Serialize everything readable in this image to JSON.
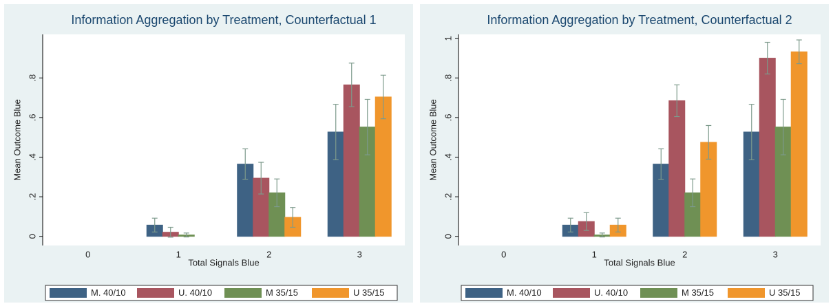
{
  "chart_data": [
    {
      "type": "bar",
      "title": "Information Aggregation by Treatment, Counterfactual 1",
      "x_label": "Total Signals Blue",
      "y_label": "Mean Outcome Blue",
      "categories": [
        "0",
        "1",
        "2",
        "3"
      ],
      "series": [
        {
          "name": "M. 40/10",
          "color": "#3e6284",
          "values": [
            0,
            0.057,
            0.365,
            0.527
          ],
          "errors": [
            0,
            0.035,
            0.077,
            0.14
          ]
        },
        {
          "name": "U. 40/10",
          "color": "#a8555f",
          "values": [
            0,
            0.021,
            0.294,
            0.765
          ],
          "errors": [
            0,
            0.025,
            0.08,
            0.11
          ]
        },
        {
          "name": "M 35/15",
          "color": "#6f9054",
          "values": [
            0,
            0.007,
            0.22,
            0.552
          ],
          "errors": [
            0,
            0.01,
            0.07,
            0.14
          ]
        },
        {
          "name": "U 35/15",
          "color": "#f0962c",
          "values": [
            0,
            0,
            0.096,
            0.704
          ],
          "errors": [
            0,
            0,
            0.05,
            0.11
          ]
        }
      ],
      "ylim": [
        -0.046,
        1.02
      ],
      "yticks": [
        0,
        {
          "value": 0.2,
          "label": ".2"
        },
        {
          "value": 0.4,
          "label": ".4"
        },
        {
          "value": 0.6,
          "label": ".6"
        },
        {
          "value": 0.8,
          "label": ".8"
        }
      ]
    },
    {
      "type": "bar",
      "title": "Information Aggregation by Treatment, Counterfactual 2",
      "x_label": "Total Signals Blue",
      "y_label": "Mean Outcome Blue",
      "categories": [
        "0",
        "1",
        "2",
        "3"
      ],
      "series": [
        {
          "name": "M. 40/10",
          "color": "#3e6284",
          "values": [
            0,
            0.057,
            0.365,
            0.527
          ],
          "errors": [
            0,
            0.035,
            0.077,
            0.14
          ]
        },
        {
          "name": "U. 40/10",
          "color": "#a8555f",
          "values": [
            0,
            0.075,
            0.685,
            0.9
          ],
          "errors": [
            0,
            0.045,
            0.08,
            0.08
          ]
        },
        {
          "name": "M 35/15",
          "color": "#6f9054",
          "values": [
            0,
            0.007,
            0.22,
            0.552
          ],
          "errors": [
            0,
            0.01,
            0.07,
            0.14
          ]
        },
        {
          "name": "U 35/15",
          "color": "#f0962c",
          "values": [
            0,
            0.057,
            0.475,
            0.932
          ],
          "errors": [
            0,
            0.035,
            0.085,
            0.06
          ]
        }
      ],
      "ylim": [
        -0.046,
        1.02
      ],
      "yticks": [
        0,
        {
          "value": 0.2,
          "label": ".2"
        },
        {
          "value": 0.4,
          "label": ".4"
        },
        {
          "value": 0.6,
          "label": ".6"
        },
        {
          "value": 0.8,
          "label": ".8"
        },
        1
      ]
    }
  ]
}
